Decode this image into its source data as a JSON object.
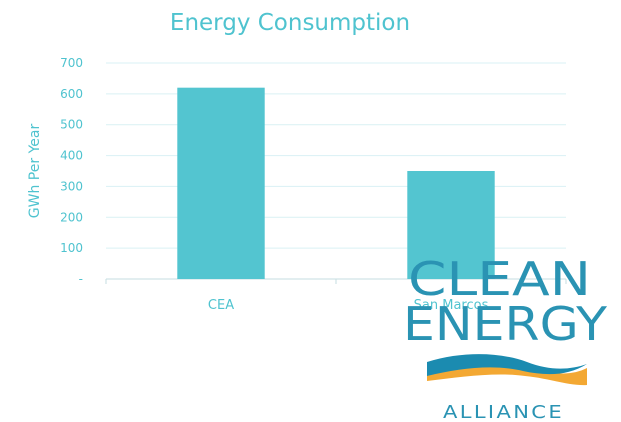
{
  "chart_data": {
    "type": "bar",
    "title": "Energy Consumption",
    "xlabel": "",
    "ylabel": "GWh Per Year",
    "categories": [
      "CEA",
      "San Marcos"
    ],
    "values": [
      620,
      350
    ],
    "ylim": [
      0,
      700
    ],
    "yticks": [
      "-",
      "100",
      "200",
      "300",
      "400",
      "500",
      "600",
      "700"
    ],
    "grid": true,
    "legend": "none",
    "bar_color": "#53c5d0"
  },
  "logo": {
    "line1": "CLEAN",
    "line2": "ENERGY",
    "line3": "Alliance",
    "colors": {
      "text": "#2a93b3",
      "wave_blue": "#1b8bb0",
      "wave_orange": "#f3a833"
    }
  }
}
